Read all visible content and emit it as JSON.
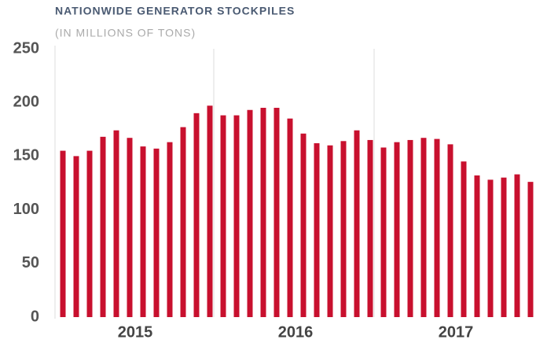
{
  "chart_data": {
    "type": "bar",
    "title": "NATIONWIDE GENERATOR STOCKPILES",
    "subtitle": "(IN MILLIONS OF TONS)",
    "categories": [
      null,
      null,
      null,
      null,
      null,
      null,
      null,
      null,
      null,
      null,
      null,
      null,
      null,
      null,
      null,
      null,
      null,
      null,
      null,
      null,
      null,
      null,
      null,
      null,
      null,
      null,
      null,
      null,
      null,
      null,
      null,
      null,
      null,
      null,
      null,
      null
    ],
    "values": [
      155,
      150,
      155,
      168,
      174,
      167,
      159,
      157,
      163,
      177,
      190,
      197,
      188,
      188,
      193,
      195,
      195,
      185,
      171,
      162,
      160,
      164,
      174,
      165,
      158,
      163,
      165,
      167,
      166,
      161,
      145,
      132,
      128,
      130,
      133,
      126
    ],
    "year_labels": [
      "2015",
      "2016",
      "2017"
    ],
    "color": "#c8102e",
    "ylim": [
      0,
      250
    ],
    "yticks": [
      0,
      50,
      100,
      150,
      200,
      250
    ],
    "grid": false
  }
}
